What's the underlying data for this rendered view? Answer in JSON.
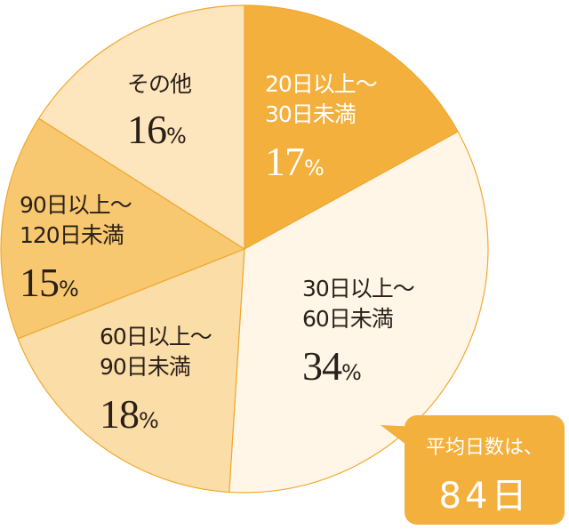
{
  "chart_data": {
    "type": "pie",
    "start": "top",
    "direction": "clockwise",
    "slices": [
      {
        "label_line1": "20日以上～",
        "label_line2": "30日未満",
        "value": 17,
        "value_text": "17",
        "color": "#F3B03D"
      },
      {
        "label_line1": "30日以上～",
        "label_line2": "60日未満",
        "value": 34,
        "value_text": "34",
        "color": "#FFF6E8"
      },
      {
        "label_line1": "60日以上～",
        "label_line2": "90日未満",
        "value": 18,
        "value_text": "18",
        "color": "#FBDDA8"
      },
      {
        "label_line1": "90日以上～",
        "label_line2": "120日未満",
        "value": 15,
        "value_text": "15",
        "color": "#F7C870"
      },
      {
        "label_line1": "その他",
        "label_line2": "",
        "value": 16,
        "value_text": "16",
        "color": "#FDE6BD"
      }
    ],
    "percent_sign": "%",
    "border_color": "#F0A830"
  },
  "callout": {
    "line1": "平均日数は、",
    "line2": "84日",
    "color": "#F3B03D"
  }
}
